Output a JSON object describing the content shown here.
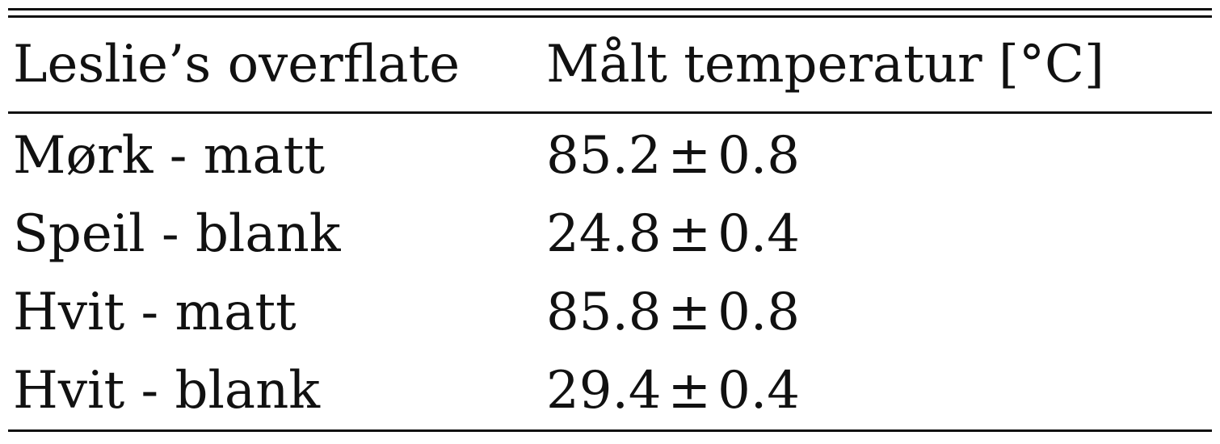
{
  "table": {
    "headers": [
      "Leslie’s overflate",
      "Målt temperatur [°C]"
    ],
    "rows": [
      {
        "surface": "Mørk - matt",
        "value": "85.2",
        "pm": "±",
        "error": "0.8"
      },
      {
        "surface": "Speil - blank",
        "value": "24.8",
        "pm": "±",
        "error": "0.4"
      },
      {
        "surface": "Hvit - matt",
        "value": "85.8",
        "pm": "±",
        "error": "0.8"
      },
      {
        "surface": "Hvit - blank",
        "value": "29.4",
        "pm": "±",
        "error": "0.4"
      }
    ]
  }
}
